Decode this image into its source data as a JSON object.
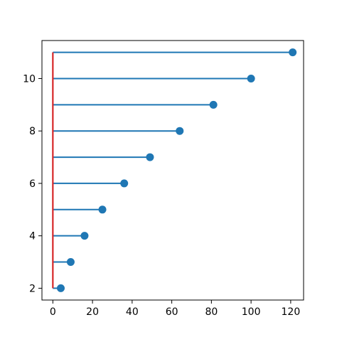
{
  "chart_data": {
    "type": "stem",
    "orientation": "horizontal",
    "title": "",
    "xlabel": "",
    "ylabel": "",
    "xlim": [
      -5.5,
      126.5
    ],
    "ylim": [
      1.55,
      11.45
    ],
    "baseline": 0,
    "grid": false,
    "x_ticks": [
      0,
      20,
      40,
      60,
      80,
      100,
      120
    ],
    "y_ticks": [
      2,
      4,
      6,
      8,
      10
    ],
    "points": [
      {
        "y": 2,
        "x": 4
      },
      {
        "y": 3,
        "x": 9
      },
      {
        "y": 4,
        "x": 16
      },
      {
        "y": 5,
        "x": 25
      },
      {
        "y": 6,
        "x": 36
      },
      {
        "y": 7,
        "x": 49
      },
      {
        "y": 8,
        "x": 64
      },
      {
        "y": 9,
        "x": 81
      },
      {
        "y": 10,
        "x": 100
      },
      {
        "y": 11,
        "x": 121
      }
    ],
    "colors": {
      "stem": "#1f77b4",
      "marker": "#1f77b4",
      "baseline": "#d62728",
      "axes": "#000000"
    }
  }
}
